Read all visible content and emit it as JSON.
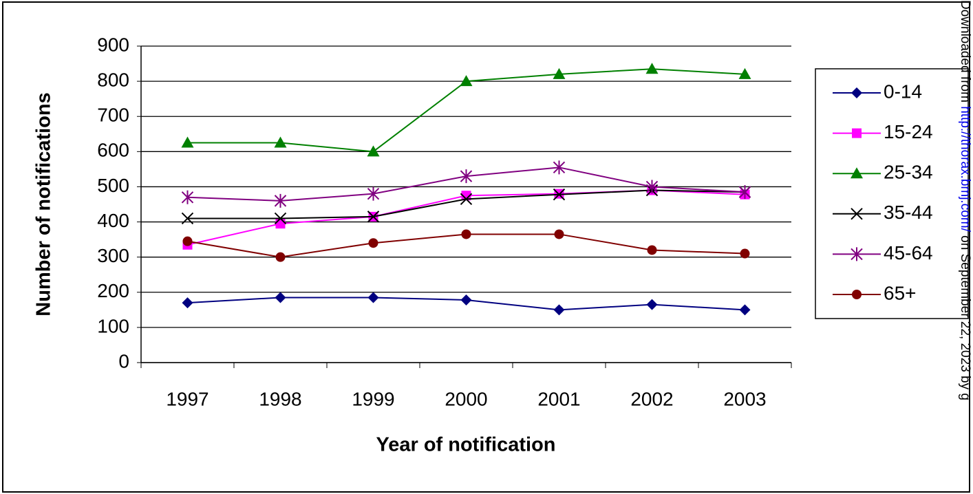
{
  "chart_data": {
    "type": "line",
    "y_label": "Number of notifications",
    "x_label": "Year of notification",
    "categories": [
      "1997",
      "1998",
      "1999",
      "2000",
      "2001",
      "2002",
      "2003"
    ],
    "series": [
      {
        "name": "0-14",
        "color": "#000080",
        "marker": "diamond",
        "values": [
          170,
          185,
          185,
          178,
          150,
          165,
          150
        ]
      },
      {
        "name": "15-24",
        "color": "#ff00ff",
        "marker": "square",
        "values": [
          335,
          395,
          415,
          475,
          480,
          490,
          478
        ]
      },
      {
        "name": "25-34",
        "color": "#008000",
        "marker": "triangle",
        "values": [
          625,
          625,
          600,
          800,
          820,
          835,
          820
        ]
      },
      {
        "name": "35-44",
        "color": "#000000",
        "marker": "x",
        "values": [
          410,
          410,
          415,
          465,
          478,
          490,
          485
        ]
      },
      {
        "name": "45-64",
        "color": "#800080",
        "marker": "star",
        "values": [
          470,
          460,
          480,
          530,
          555,
          500,
          485
        ]
      },
      {
        "name": "65+",
        "color": "#800000",
        "marker": "circle",
        "values": [
          345,
          300,
          340,
          365,
          365,
          320,
          310
        ]
      }
    ],
    "ylim": [
      0,
      900
    ],
    "yticks": [
      0,
      100,
      200,
      300,
      400,
      500,
      600,
      700,
      800,
      900
    ],
    "grid": true,
    "legend": "right"
  },
  "watermark": {
    "prefix": "Downloaded from ",
    "link": "http://thorax.bmj.com/",
    "suffix": " on September 22, 2023 by g"
  }
}
